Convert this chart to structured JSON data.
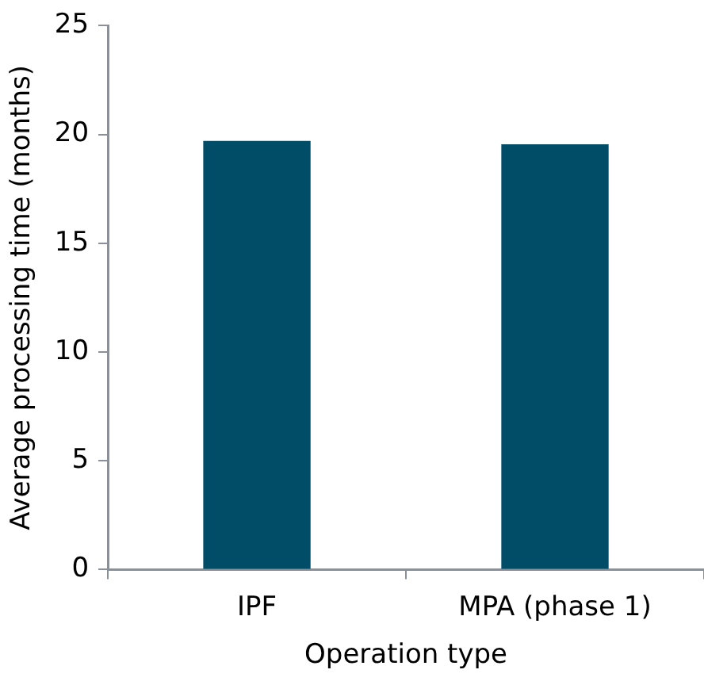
{
  "chart_data": {
    "type": "bar",
    "xlabel": "Operation type",
    "ylabel": "Average processing time (months)",
    "categories": [
      "IPF",
      "MPA (phase 1)"
    ],
    "values": [
      19.7,
      19.55
    ],
    "color": "#014c66",
    "ylim": [
      0,
      25
    ],
    "yticks": [
      0,
      5,
      10,
      15,
      20,
      25
    ],
    "grid": false,
    "legend": false
  }
}
